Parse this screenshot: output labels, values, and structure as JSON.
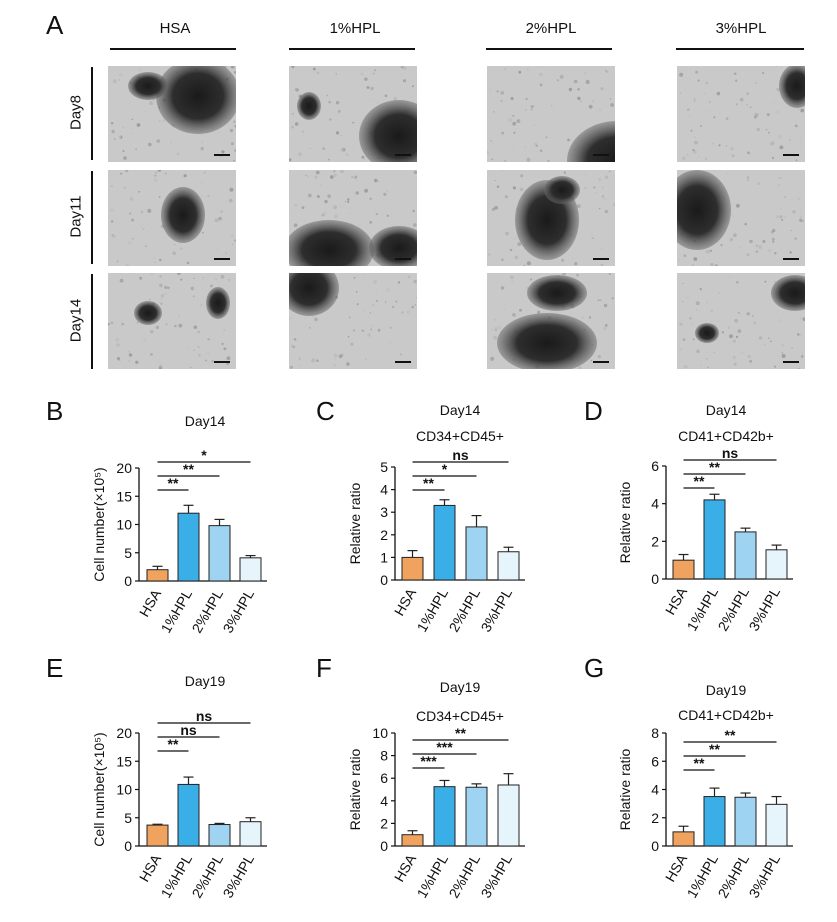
{
  "panel_a": {
    "letter": "A",
    "columns": [
      "HSA",
      "1%HPL",
      "2%HPL",
      "3%HPL"
    ],
    "rows": [
      "Day8",
      "Day11",
      "Day14"
    ]
  },
  "chart_data": [
    {
      "id": "B",
      "letter": "B",
      "type": "bar",
      "title": "Day14",
      "subtitle": "",
      "ylabel": "Cell number(×10⁵)",
      "categories": [
        "HSA",
        "1%HPL",
        "2%HPL",
        "3%HPL"
      ],
      "values": [
        2.0,
        12.0,
        9.8,
        4.1
      ],
      "errors": [
        0.6,
        1.4,
        1.1,
        0.4
      ],
      "colors": [
        "#f0a35e",
        "#3aaee6",
        "#9fd3f2",
        "#e6f4fc"
      ],
      "ylim": [
        0,
        20
      ],
      "yticks": [
        0,
        5,
        10,
        15,
        20
      ],
      "significance": [
        {
          "from": 0,
          "to": 1,
          "label": "**"
        },
        {
          "from": 0,
          "to": 2,
          "label": "**"
        },
        {
          "from": 0,
          "to": 3,
          "label": "*"
        }
      ]
    },
    {
      "id": "C",
      "letter": "C",
      "type": "bar",
      "title": "Day14",
      "subtitle": "CD34+CD45+",
      "ylabel": "Relative ratio",
      "categories": [
        "HSA",
        "1%HPL",
        "2%HPL",
        "3%HPL"
      ],
      "values": [
        1.0,
        3.3,
        2.35,
        1.25
      ],
      "errors": [
        0.3,
        0.25,
        0.5,
        0.2
      ],
      "colors": [
        "#f0a35e",
        "#3aaee6",
        "#9fd3f2",
        "#e6f4fc"
      ],
      "ylim": [
        0,
        5
      ],
      "yticks": [
        0,
        1,
        2,
        3,
        4,
        5
      ],
      "significance": [
        {
          "from": 0,
          "to": 1,
          "label": "**"
        },
        {
          "from": 0,
          "to": 2,
          "label": "*"
        },
        {
          "from": 0,
          "to": 3,
          "label": "ns"
        }
      ]
    },
    {
      "id": "D",
      "letter": "D",
      "type": "bar",
      "title": "Day14",
      "subtitle": "CD41+CD42b+",
      "ylabel": "Relative ratio",
      "categories": [
        "HSA",
        "1%HPL",
        "2%HPL",
        "3%HPL"
      ],
      "values": [
        1.0,
        4.2,
        2.5,
        1.55
      ],
      "errors": [
        0.3,
        0.3,
        0.2,
        0.25
      ],
      "colors": [
        "#f0a35e",
        "#3aaee6",
        "#9fd3f2",
        "#e6f4fc"
      ],
      "ylim": [
        0,
        6
      ],
      "yticks": [
        0,
        2,
        4,
        6
      ],
      "significance": [
        {
          "from": 0,
          "to": 1,
          "label": "**"
        },
        {
          "from": 0,
          "to": 2,
          "label": "**"
        },
        {
          "from": 0,
          "to": 3,
          "label": "ns"
        }
      ]
    },
    {
      "id": "E",
      "letter": "E",
      "type": "bar",
      "title": "Day19",
      "subtitle": "",
      "ylabel": "Cell number(×10⁵)",
      "categories": [
        "HSA",
        "1%HPL",
        "2%HPL",
        "3%HPL"
      ],
      "values": [
        3.7,
        10.9,
        3.8,
        4.3
      ],
      "errors": [
        0.15,
        1.3,
        0.2,
        0.7
      ],
      "colors": [
        "#f0a35e",
        "#3aaee6",
        "#9fd3f2",
        "#e6f4fc"
      ],
      "ylim": [
        0,
        20
      ],
      "yticks": [
        0,
        5,
        10,
        15,
        20
      ],
      "significance": [
        {
          "from": 0,
          "to": 1,
          "label": "**"
        },
        {
          "from": 0,
          "to": 2,
          "label": "ns"
        },
        {
          "from": 0,
          "to": 3,
          "label": "ns"
        }
      ]
    },
    {
      "id": "F",
      "letter": "F",
      "type": "bar",
      "title": "Day19",
      "subtitle": "CD34+CD45+",
      "ylabel": "Relative ratio",
      "categories": [
        "HSA",
        "1%HPL",
        "2%HPL",
        "3%HPL"
      ],
      "values": [
        1.0,
        5.25,
        5.2,
        5.4
      ],
      "errors": [
        0.35,
        0.55,
        0.3,
        1.0
      ],
      "colors": [
        "#f0a35e",
        "#3aaee6",
        "#9fd3f2",
        "#e6f4fc"
      ],
      "ylim": [
        0,
        10
      ],
      "yticks": [
        0,
        2,
        4,
        6,
        8,
        10
      ],
      "significance": [
        {
          "from": 0,
          "to": 1,
          "label": "***"
        },
        {
          "from": 0,
          "to": 2,
          "label": "***"
        },
        {
          "from": 0,
          "to": 3,
          "label": "**"
        }
      ]
    },
    {
      "id": "G",
      "letter": "G",
      "type": "bar",
      "title": "Day19",
      "subtitle": "CD41+CD42b+",
      "ylabel": "Relative ratio",
      "categories": [
        "HSA",
        "1%HPL",
        "2%HPL",
        "3%HPL"
      ],
      "values": [
        1.0,
        3.5,
        3.45,
        2.95
      ],
      "errors": [
        0.4,
        0.6,
        0.3,
        0.55
      ],
      "colors": [
        "#f0a35e",
        "#3aaee6",
        "#9fd3f2",
        "#e6f4fc"
      ],
      "ylim": [
        0,
        8
      ],
      "yticks": [
        0,
        2,
        4,
        6,
        8
      ],
      "significance": [
        {
          "from": 0,
          "to": 1,
          "label": "**"
        },
        {
          "from": 0,
          "to": 2,
          "label": "**"
        },
        {
          "from": 0,
          "to": 3,
          "label": "**"
        }
      ]
    }
  ]
}
